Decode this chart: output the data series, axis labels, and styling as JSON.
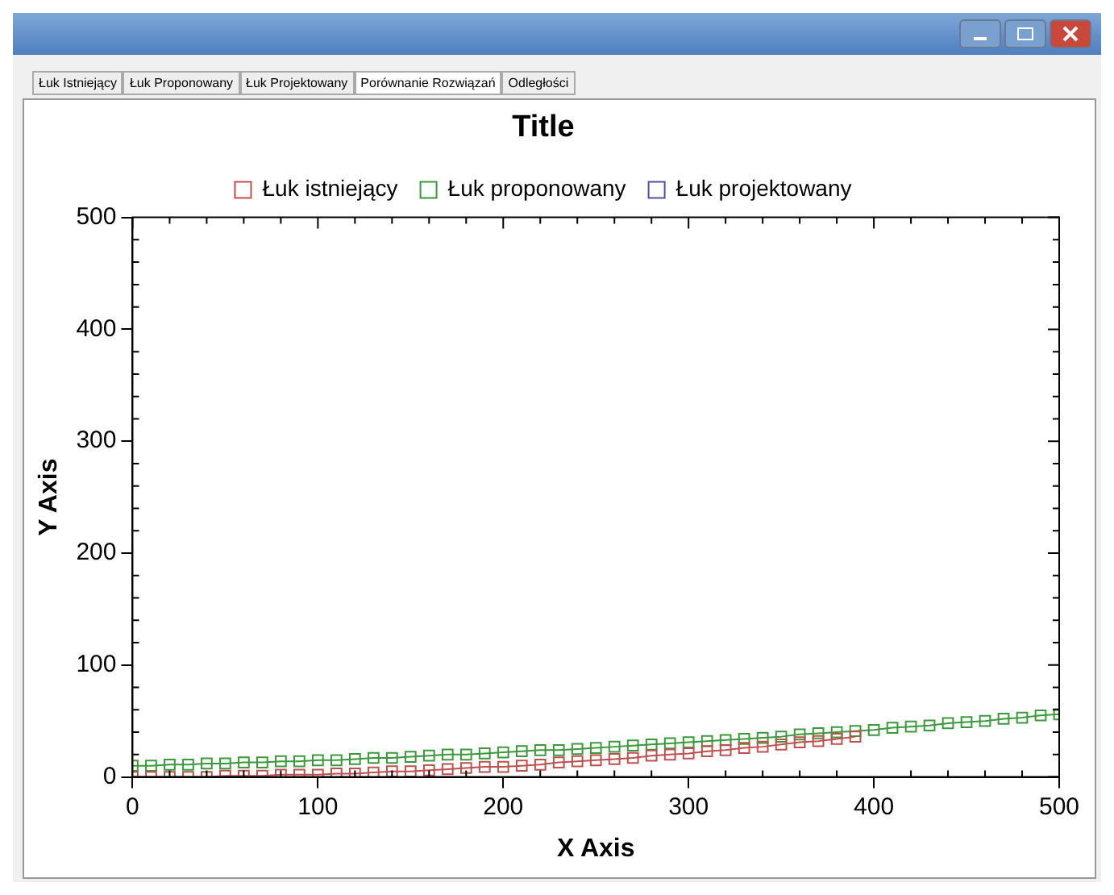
{
  "chart_data": {
    "type": "line",
    "title": "Title",
    "xlabel": "X Axis",
    "ylabel": "Y Axis",
    "annotations": [
      "Łuk Istniejący",
      "Łuk Proponowany",
      "Łuk Projektowany",
      "Porównanie Rozwiązań",
      "Odległości"
    ],
    "xlim": [
      0,
      500
    ],
    "xticks": [
      0,
      100,
      200,
      300,
      400,
      500
    ],
    "ylim": [
      0,
      500
    ],
    "yticks": [
      0,
      100,
      200,
      300,
      400,
      500
    ],
    "grid": false,
    "legend": "top",
    "marker": "square",
    "line_style": "solid",
    "series": [
      {
        "name": "Łuk istniejący",
        "color": "#c0504d",
        "x": [
          0,
          10,
          20,
          30,
          40,
          50,
          60,
          70,
          80,
          90,
          100,
          110,
          120,
          130,
          140,
          150,
          160,
          170,
          180,
          190,
          200,
          210,
          220,
          230,
          240,
          250,
          260,
          270,
          280,
          290,
          300,
          310,
          320,
          330,
          340,
          350,
          360,
          370,
          380,
          390
        ],
        "values": [
          0,
          0,
          0,
          0,
          0,
          1,
          1,
          1,
          2,
          2,
          2,
          3,
          3,
          4,
          5,
          5,
          6,
          7,
          8,
          9,
          9,
          10,
          11,
          13,
          14,
          15,
          16,
          17,
          19,
          20,
          21,
          23,
          24,
          26,
          27,
          29,
          31,
          32,
          34,
          36
        ]
      },
      {
        "name": "Łuk proponowany",
        "color": "#3a9a3a",
        "x": [
          0,
          10,
          20,
          30,
          40,
          50,
          60,
          70,
          80,
          90,
          100,
          110,
          120,
          130,
          140,
          150,
          160,
          170,
          180,
          190,
          200,
          210,
          220,
          230,
          240,
          250,
          260,
          270,
          280,
          290,
          300,
          310,
          320,
          330,
          340,
          350,
          360,
          370,
          380,
          390,
          400,
          410,
          420,
          430,
          440,
          450,
          460,
          470,
          480,
          490,
          500
        ],
        "values": [
          10,
          10,
          11,
          11,
          12,
          12,
          13,
          13,
          14,
          14,
          15,
          15,
          16,
          17,
          17,
          18,
          19,
          20,
          20,
          21,
          22,
          23,
          24,
          24,
          25,
          26,
          27,
          28,
          29,
          30,
          31,
          32,
          33,
          34,
          35,
          36,
          38,
          39,
          40,
          41,
          42,
          44,
          45,
          46,
          48,
          49,
          50,
          52,
          53,
          55,
          56
        ]
      },
      {
        "name": "Łuk projektowany",
        "color": "#5050a0"
      }
    ]
  }
}
